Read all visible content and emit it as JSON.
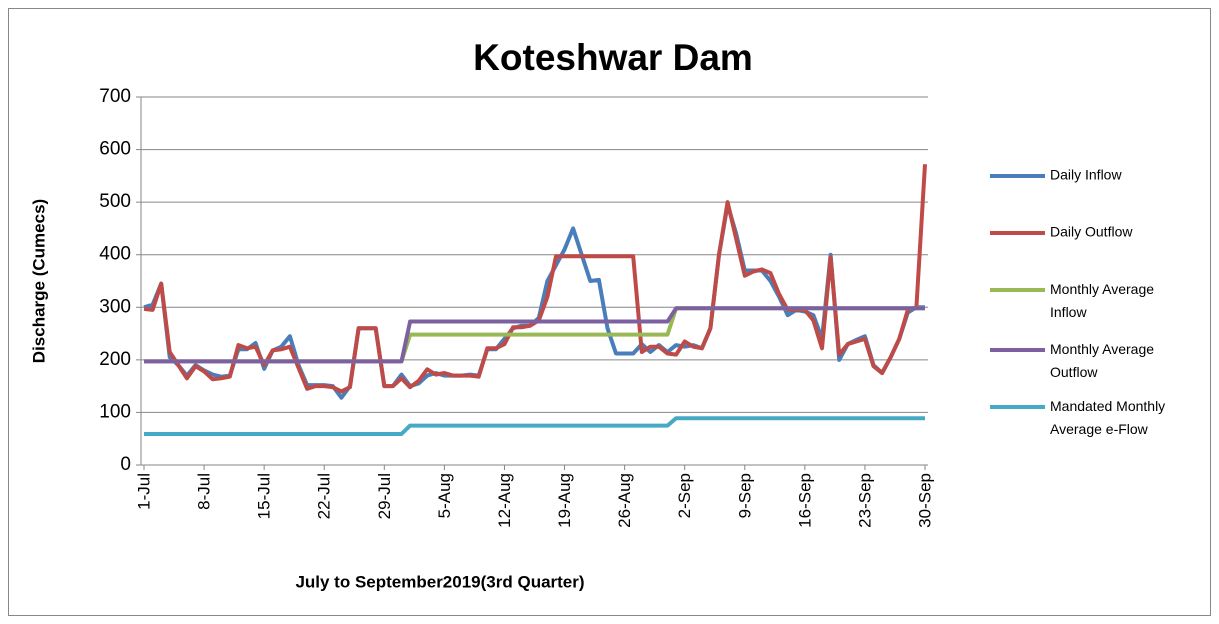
{
  "chart_data": {
    "type": "line",
    "title": "Koteshwar Dam",
    "x_label": "July to September2019(3rd Quarter)",
    "y_label": "Discharge (Cumecs)",
    "categories": [
      "1-Jul",
      null,
      null,
      null,
      null,
      null,
      null,
      "8-Jul",
      null,
      null,
      null,
      null,
      null,
      null,
      "15-Jul",
      null,
      null,
      null,
      null,
      null,
      null,
      "22-Jul",
      null,
      null,
      null,
      null,
      null,
      null,
      "29-Jul",
      null,
      null,
      null,
      null,
      null,
      null,
      "5-Aug",
      null,
      null,
      null,
      null,
      null,
      null,
      "12-Aug",
      null,
      null,
      null,
      null,
      null,
      null,
      "19-Aug",
      null,
      null,
      null,
      null,
      null,
      null,
      "26-Aug",
      null,
      null,
      null,
      null,
      null,
      null,
      "2-Sep",
      null,
      null,
      null,
      null,
      null,
      null,
      "9-Sep",
      null,
      null,
      null,
      null,
      null,
      null,
      "16-Sep",
      null,
      null,
      null,
      null,
      null,
      null,
      "23-Sep",
      null,
      null,
      null,
      null,
      null,
      null,
      "30-Sep"
    ],
    "ylim": [
      0,
      700
    ],
    "yticks": [
      0,
      100,
      200,
      300,
      400,
      500,
      600,
      700
    ],
    "grid": true,
    "legend": "right",
    "series": [
      {
        "name": "Daily Inflow",
        "color": "#4a7ebb",
        "values": [
          300,
          305,
          345,
          205,
          190,
          170,
          190,
          180,
          172,
          168,
          170,
          220,
          220,
          232,
          183,
          218,
          225,
          245,
          190,
          152,
          152,
          152,
          150,
          128,
          150,
          260,
          260,
          260,
          150,
          150,
          172,
          150,
          155,
          170,
          175,
          170,
          170,
          170,
          172,
          170,
          220,
          220,
          240,
          260,
          265,
          265,
          280,
          350,
          380,
          410,
          450,
          400,
          350,
          352,
          260,
          212,
          212,
          212,
          230,
          215,
          228,
          215,
          228,
          225,
          228,
          222,
          260,
          400,
          495,
          440,
          370,
          370,
          370,
          350,
          320,
          285,
          295,
          292,
          285,
          240,
          400,
          200,
          230,
          238,
          245,
          190,
          175,
          205,
          240,
          290,
          300,
          300
        ]
      },
      {
        "name": "Daily Outflow",
        "color": "#be4b48",
        "values": [
          297,
          295,
          345,
          215,
          190,
          165,
          188,
          178,
          163,
          165,
          168,
          228,
          222,
          225,
          190,
          218,
          220,
          225,
          185,
          145,
          150,
          150,
          148,
          140,
          148,
          260,
          260,
          260,
          150,
          150,
          165,
          148,
          160,
          182,
          172,
          175,
          170,
          170,
          170,
          168,
          222,
          222,
          230,
          262,
          262,
          265,
          275,
          320,
          397,
          397,
          397,
          397,
          397,
          397,
          397,
          397,
          397,
          397,
          215,
          225,
          225,
          212,
          210,
          235,
          225,
          222,
          260,
          400,
          500,
          430,
          360,
          368,
          372,
          365,
          325,
          295,
          295,
          295,
          275,
          222,
          395,
          210,
          230,
          235,
          240,
          188,
          175,
          205,
          240,
          295,
          300,
          572
        ]
      },
      {
        "name": "Monthly Average Inflow",
        "color": "#98b954",
        "values": [
          197,
          197,
          197,
          197,
          197,
          197,
          197,
          197,
          197,
          197,
          197,
          197,
          197,
          197,
          197,
          197,
          197,
          197,
          197,
          197,
          197,
          197,
          197,
          197,
          197,
          197,
          197,
          197,
          197,
          197,
          197,
          248,
          248,
          248,
          248,
          248,
          248,
          248,
          248,
          248,
          248,
          248,
          248,
          248,
          248,
          248,
          248,
          248,
          248,
          248,
          248,
          248,
          248,
          248,
          248,
          248,
          248,
          248,
          248,
          248,
          248,
          248,
          298,
          298,
          298,
          298,
          298,
          298,
          298,
          298,
          298,
          298,
          298,
          298,
          298,
          298,
          298,
          298,
          298,
          298,
          298,
          298,
          298,
          298,
          298,
          298,
          298,
          298,
          298,
          298,
          298,
          298
        ]
      },
      {
        "name": "Monthly Average Outflow",
        "color": "#7d60a0",
        "values": [
          197,
          197,
          197,
          197,
          197,
          197,
          197,
          197,
          197,
          197,
          197,
          197,
          197,
          197,
          197,
          197,
          197,
          197,
          197,
          197,
          197,
          197,
          197,
          197,
          197,
          197,
          197,
          197,
          197,
          197,
          197,
          273,
          273,
          273,
          273,
          273,
          273,
          273,
          273,
          273,
          273,
          273,
          273,
          273,
          273,
          273,
          273,
          273,
          273,
          273,
          273,
          273,
          273,
          273,
          273,
          273,
          273,
          273,
          273,
          273,
          273,
          273,
          298,
          298,
          298,
          298,
          298,
          298,
          298,
          298,
          298,
          298,
          298,
          298,
          298,
          298,
          298,
          298,
          298,
          298,
          298,
          298,
          298,
          298,
          298,
          298,
          298,
          298,
          298,
          298,
          298,
          298
        ]
      },
      {
        "name": "Mandated Monthly Average e-Flow",
        "color": "#46aac5",
        "values": [
          59,
          59,
          59,
          59,
          59,
          59,
          59,
          59,
          59,
          59,
          59,
          59,
          59,
          59,
          59,
          59,
          59,
          59,
          59,
          59,
          59,
          59,
          59,
          59,
          59,
          59,
          59,
          59,
          59,
          59,
          59,
          75,
          75,
          75,
          75,
          75,
          75,
          75,
          75,
          75,
          75,
          75,
          75,
          75,
          75,
          75,
          75,
          75,
          75,
          75,
          75,
          75,
          75,
          75,
          75,
          75,
          75,
          75,
          75,
          75,
          75,
          75,
          89,
          89,
          89,
          89,
          89,
          89,
          89,
          89,
          89,
          89,
          89,
          89,
          89,
          89,
          89,
          89,
          89,
          89,
          89,
          89,
          89,
          89,
          89,
          89,
          89,
          89,
          89,
          89,
          89,
          89
        ]
      }
    ]
  }
}
